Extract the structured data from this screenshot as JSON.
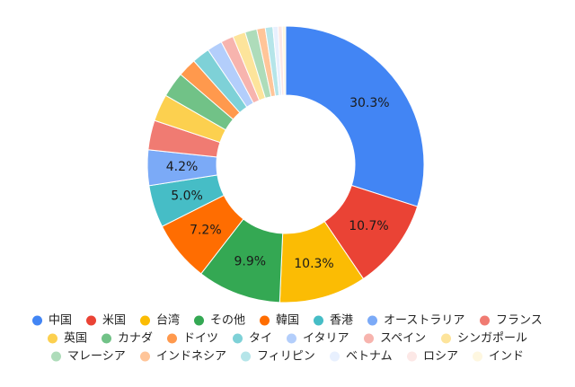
{
  "chart_data": {
    "type": "pie",
    "donut": true,
    "legend_position": "bottom",
    "slices": [
      {
        "label": "中国",
        "value": 30.3,
        "color": "#4285F4",
        "show_label": true
      },
      {
        "label": "米国",
        "value": 10.7,
        "color": "#EA4335",
        "show_label": true
      },
      {
        "label": "台湾",
        "value": 10.3,
        "color": "#FBBC04",
        "show_label": true
      },
      {
        "label": "その他",
        "value": 9.9,
        "color": "#34A853",
        "show_label": true
      },
      {
        "label": "韓国",
        "value": 7.2,
        "color": "#FF6D01",
        "show_label": true
      },
      {
        "label": "香港",
        "value": 5.0,
        "color": "#46BDC6",
        "show_label": true
      },
      {
        "label": "オーストラリア",
        "value": 4.2,
        "color": "#7BAAF7",
        "show_label": true
      },
      {
        "label": "フランス",
        "value": 3.5,
        "color": "#F07B72",
        "show_label": false
      },
      {
        "label": "英国",
        "value": 3.2,
        "color": "#FCD04F",
        "show_label": false
      },
      {
        "label": "カナダ",
        "value": 3.0,
        "color": "#71C287",
        "show_label": false
      },
      {
        "label": "ドイツ",
        "value": 2.2,
        "color": "#FF994D",
        "show_label": false
      },
      {
        "label": "タイ",
        "value": 2.1,
        "color": "#7ED1D7",
        "show_label": false
      },
      {
        "label": "イタリア",
        "value": 1.8,
        "color": "#B3CEFB",
        "show_label": false
      },
      {
        "label": "スペイン",
        "value": 1.5,
        "color": "#F7B4AE",
        "show_label": false
      },
      {
        "label": "シンガポール",
        "value": 1.5,
        "color": "#FDE49B",
        "show_label": false
      },
      {
        "label": "マレーシア",
        "value": 1.4,
        "color": "#AEDCBA",
        "show_label": false
      },
      {
        "label": "インドネシア",
        "value": 1.0,
        "color": "#FFC599",
        "show_label": false
      },
      {
        "label": "フィリピン",
        "value": 0.9,
        "color": "#B5E5E9",
        "show_label": false
      },
      {
        "label": "ベトナム",
        "value": 0.6,
        "color": "#E8F0FE",
        "show_label": false
      },
      {
        "label": "ロシア",
        "value": 0.5,
        "color": "#FCE8E6",
        "show_label": false
      },
      {
        "label": "インド",
        "value": 0.4,
        "color": "#FEF7E0",
        "show_label": false
      }
    ]
  }
}
